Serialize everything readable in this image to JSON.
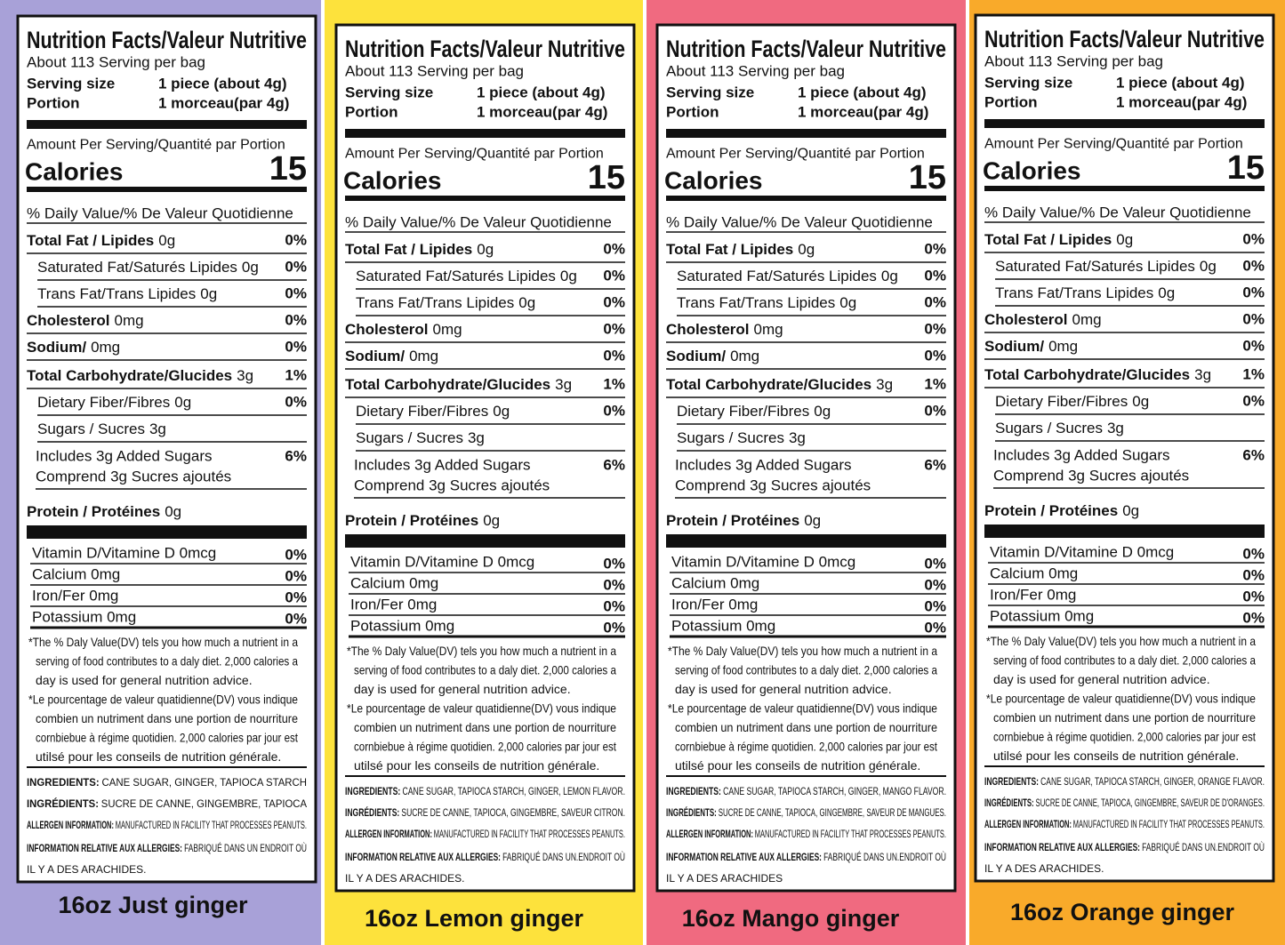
{
  "panels": [
    {
      "title": "Nutrition Facts/Valeur Nutritive",
      "servings": "About 113 Serving per bag",
      "serving_size": {
        "label": "Serving size",
        "value": "1 piece (about 4g)"
      },
      "portion": {
        "label": "Portion",
        "value": "1 morceau(par 4g)"
      },
      "amount_per_serving": "Amount Per Serving/Quantité  par Portion",
      "calories_label": "Calories",
      "calories": 15,
      "dv_header": "% Daily Value/% De Valeur Quotidienne",
      "nutrients": [
        {
          "name": "Total Fat / Lipides",
          "amount": "0g",
          "dv": "0%"
        },
        {
          "name": "Saturated Fat/Saturés Lipides",
          "amount": "0g",
          "dv": "0%"
        },
        {
          "name": "Trans Fat/Trans Lipides",
          "amount": "0g",
          "dv": "0%"
        },
        {
          "name": "Cholesterol",
          "amount": "0mg",
          "dv": "0%"
        },
        {
          "name": "Sodium/",
          "amount": "0mg",
          "dv": "0%"
        },
        {
          "name": "Total Carbohydrate/Glucides",
          "amount": "3g",
          "dv": "1%"
        },
        {
          "name": "Dietary Fiber/Fibres",
          "amount": "0g",
          "dv": "0%"
        },
        {
          "name": "Sugars / Sucres",
          "amount": "3g"
        }
      ],
      "added_sugars": {
        "lines": [
          "Includes 3g Added Sugars",
          "Comprend 3g Sucres ajoutés"
        ],
        "dv": "6%"
      },
      "protein": {
        "name": "Protein / Protéines",
        "amount": "0g"
      },
      "vitamins": [
        {
          "name": "Vitamin D/Vitamine D 0mcg",
          "dv": "0%"
        },
        {
          "name": "Calcium 0mg",
          "dv": "0%"
        },
        {
          "name": "Iron/Fer 0mg",
          "dv": "0%"
        },
        {
          "name": "Potassium 0mg",
          "dv": "0%"
        }
      ],
      "footnote": [
        "*The % Daly Value(DV) tels you how much a nutrient in a",
        "serving of food contributes to a daly diet. 2,000 calories a",
        "day is used for general nutrition advice.",
        "*Le pourcentage de valeur quatidienne(DV) vous indique",
        "combien un nutriment dans une portion de nourriture",
        "cornbiebue à régime quotidien. 2,000 calories par jour est",
        "utilsé pour les conseils de nutrition générale."
      ],
      "ingredients": [
        {
          "label": "INGREDIENTS:",
          "text": "CANE SUGAR, GINGER, TAPIOCA STARCH"
        },
        {
          "label": "INGRÉDIENTS:",
          "text": "SUCRE DE CANNE, GINGEMBRE, TAPIOCA"
        },
        {
          "label": "ALLERGEN INFORMATION:",
          "text": "MANUFACTURED IN FACILITY THAT PROCESSES PEANUTS."
        },
        {
          "label": "INFORMATION RELATIVE AUX ALLERGIES:",
          "text": "FABRIQUÉ DANS UN ENDROIT OÙ"
        },
        {
          "text": "IL Y A DES ARACHIDES."
        }
      ],
      "caption": "16oz Just ginger"
    },
    {
      "title": "Nutrition Facts/Valeur Nutritive",
      "servings": "About 113 Serving per bag",
      "serving_size": {
        "label": "Serving size",
        "value": "1 piece (about 4g)"
      },
      "portion": {
        "label": "Portion",
        "value": "1 morceau(par 4g)"
      },
      "amount_per_serving": "Amount Per Serving/Quantité  par Portion",
      "calories_label": "Calories",
      "calories": 15,
      "dv_header": "% Daily Value/% De Valeur Quotidienne",
      "nutrients": [
        {
          "name": "Total Fat / Lipides",
          "amount": "0g",
          "dv": "0%"
        },
        {
          "name": "Saturated Fat/Saturés Lipides",
          "amount": "0g",
          "dv": "0%"
        },
        {
          "name": "Trans Fat/Trans Lipides",
          "amount": "0g",
          "dv": "0%"
        },
        {
          "name": "Cholesterol",
          "amount": "0mg",
          "dv": "0%"
        },
        {
          "name": "Sodium/",
          "amount": "0mg",
          "dv": "0%"
        },
        {
          "name": "Total Carbohydrate/Glucides",
          "amount": "3g",
          "dv": "1%"
        },
        {
          "name": "Dietary Fiber/Fibres",
          "amount": "0g",
          "dv": "0%"
        },
        {
          "name": "Sugars / Sucres",
          "amount": "3g"
        }
      ],
      "added_sugars": {
        "lines": [
          "Includes 3g Added Sugars",
          "Comprend 3g Sucres ajoutés"
        ],
        "dv": "6%"
      },
      "protein": {
        "name": "Protein / Protéines",
        "amount": "0g"
      },
      "vitamins": [
        {
          "name": "Vitamin D/Vitamine D 0mcg",
          "dv": "0%"
        },
        {
          "name": "Calcium 0mg",
          "dv": "0%"
        },
        {
          "name": "Iron/Fer 0mg",
          "dv": "0%"
        },
        {
          "name": "Potassium 0mg",
          "dv": "0%"
        }
      ],
      "footnote": [
        "*The % Daly Value(DV) tels you how much a nutrient in a",
        "serving of food contributes to a daly diet. 2,000 calories a",
        "day is used for general nutrition advice.",
        "*Le pourcentage de valeur quatidienne(DV) vous indique",
        "combien un nutriment dans une portion de nourriture",
        "cornbiebue à régime quotidien. 2,000 calories par jour est",
        "utilsé pour les conseils de nutrition générale."
      ],
      "ingredients": [
        {
          "label": "INGREDIENTS:",
          "text": "CANE SUGAR, TAPIOCA STARCH, GINGER, LEMON FLAVOR."
        },
        {
          "label": "INGRÉDIENTS:",
          "text": "SUCRE DE CANNE, TAPIOCA, GINGEMBRE, SAVEUR CITRON."
        },
        {
          "label": "ALLERGEN INFORMATION:",
          "text": "MANUFACTURED IN FACILITY THAT PROCESSES PEANUTS."
        },
        {
          "label": "INFORMATION RELATIVE AUX ALLERGIES:",
          "text": "FABRIQUÉ DANS UN.ENDROIT OÙ"
        },
        {
          "text": "IL Y A DES ARACHIDES."
        }
      ],
      "caption": "16oz Lemon ginger"
    },
    {
      "title": "Nutrition Facts/Valeur Nutritive",
      "servings": "About 113 Serving per bag",
      "serving_size": {
        "label": "Serving size",
        "value": "1 piece (about 4g)"
      },
      "portion": {
        "label": "Portion",
        "value": "1 morceau(par 4g)"
      },
      "amount_per_serving": "Amount Per Serving/Quantité  par Portion",
      "calories_label": "Calories",
      "calories": 15,
      "dv_header": "% Daily Value/% De Valeur Quotidienne",
      "nutrients": [
        {
          "name": "Total Fat / Lipides",
          "amount": "0g",
          "dv": "0%"
        },
        {
          "name": "Saturated Fat/Saturés Lipides",
          "amount": "0g",
          "dv": "0%"
        },
        {
          "name": "Trans Fat/Trans Lipides",
          "amount": "0g",
          "dv": "0%"
        },
        {
          "name": "Cholesterol",
          "amount": "0mg",
          "dv": "0%"
        },
        {
          "name": "Sodium/",
          "amount": "0mg",
          "dv": "0%"
        },
        {
          "name": "Total Carbohydrate/Glucides",
          "amount": "3g",
          "dv": "1%"
        },
        {
          "name": "Dietary Fiber/Fibres",
          "amount": "0g",
          "dv": "0%"
        },
        {
          "name": "Sugars / Sucres",
          "amount": "3g"
        }
      ],
      "added_sugars": {
        "lines": [
          "Includes 3g Added Sugars",
          "Comprend 3g Sucres ajoutés"
        ],
        "dv": "6%"
      },
      "protein": {
        "name": "Protein / Protéines",
        "amount": "0g"
      },
      "vitamins": [
        {
          "name": "Vitamin D/Vitamine D 0mcg",
          "dv": "0%"
        },
        {
          "name": "Calcium 0mg",
          "dv": "0%"
        },
        {
          "name": "Iron/Fer 0mg",
          "dv": "0%"
        },
        {
          "name": "Potassium 0mg",
          "dv": "0%"
        }
      ],
      "footnote": [
        "*The % Daly Value(DV) tels you how much a nutrient in a",
        "serving of food contributes to a daly diet. 2,000 calories a",
        "day is used for general nutrition advice.",
        "*Le pourcentage de valeur quatidienne(DV) vous indique",
        "combien un nutriment dans une portion de nourriture",
        "cornbiebue à régime quotidien. 2,000 calories par jour est",
        "utilsé pour les conseils de nutrition générale."
      ],
      "ingredients": [
        {
          "label": "INGREDIENTS:",
          "text": "CANE SUGAR, TAPIOCA STARCH, GINGER, MANGO FLAVOR."
        },
        {
          "label": "INGRÉDIENTS:",
          "text": "SUCRE DE CANNE, TAPIOCA, GINGEMBRE, SAVEUR DE MANGUES."
        },
        {
          "label": "ALLERGEN INFORMATION:",
          "text": "MANUFACTURED IN FACILITY THAT PROCESSES PEANUTS."
        },
        {
          "label": "INFORMATION RELATIVE AUX ALLERGIES:",
          "text": "FABRIQUÉ DANS UN.ENDROIT OÙ"
        },
        {
          "text": "IL Y A DES ARACHIDES"
        }
      ],
      "caption": "16oz Mango ginger"
    },
    {
      "title": "Nutrition Facts/Valeur Nutritive",
      "servings": "About 113 Serving per bag",
      "serving_size": {
        "label": "Serving size",
        "value": "1 piece (about 4g)"
      },
      "portion": {
        "label": "Portion",
        "value": "1 morceau(par 4g)"
      },
      "amount_per_serving": "Amount Per Serving/Quantité  par Portion",
      "calories_label": "Calories",
      "calories": 15,
      "dv_header": "% Daily Value/% De Valeur Quotidienne",
      "nutrients": [
        {
          "name": "Total Fat / Lipides",
          "amount": "0g",
          "dv": "0%"
        },
        {
          "name": "Saturated Fat/Saturés Lipides",
          "amount": "0g",
          "dv": "0%"
        },
        {
          "name": "Trans Fat/Trans Lipides",
          "amount": "0g",
          "dv": "0%"
        },
        {
          "name": "Cholesterol",
          "amount": "0mg",
          "dv": "0%"
        },
        {
          "name": "Sodium/",
          "amount": "0mg",
          "dv": "0%"
        },
        {
          "name": "Total Carbohydrate/Glucides",
          "amount": "3g",
          "dv": "1%"
        },
        {
          "name": "Dietary Fiber/Fibres",
          "amount": "0g",
          "dv": "0%"
        },
        {
          "name": "Sugars / Sucres",
          "amount": "3g"
        }
      ],
      "added_sugars": {
        "lines": [
          "Includes 3g Added Sugars",
          "Comprend 3g Sucres ajoutés"
        ],
        "dv": "6%"
      },
      "protein": {
        "name": "Protein / Protéines",
        "amount": "0g"
      },
      "vitamins": [
        {
          "name": "Vitamin D/Vitamine D 0mcg",
          "dv": "0%"
        },
        {
          "name": "Calcium 0mg",
          "dv": "0%"
        },
        {
          "name": "Iron/Fer 0mg",
          "dv": "0%"
        },
        {
          "name": "Potassium 0mg",
          "dv": "0%"
        }
      ],
      "footnote": [
        "*The % Daly Value(DV) tels you how much a nutrient in a",
        "serving of food contributes to a daly diet. 2,000 calories a",
        "day is used for general nutrition advice.",
        "*Le pourcentage de valeur quatidienne(DV) vous indique",
        "combien un nutriment dans une portion de nourriture",
        "cornbiebue à régime quotidien. 2,000 calories par jour est",
        "utilsé pour les conseils de nutrition générale."
      ],
      "ingredients": [
        {
          "label": "INGREDIENTS:",
          "text": "CANE SUGAR, TAPIOCA STARCH, GINGER, ORANGE FLAVOR."
        },
        {
          "label": "INGRÉDIENTS:",
          "text": "SUCRE DE CANNE, TAPIOCA, GINGEMBRE, SAVEUR DE D'ORANGES."
        },
        {
          "label": "ALLERGEN INFORMATION:",
          "text": "MANUFACTURED IN FACILITY THAT PROCESSES PEANUTS."
        },
        {
          "label": "INFORMATION RELATIVE AUX ALLERGIES:",
          "text": "FABRIQUÉ DANS UN.ENDROIT OÙ"
        },
        {
          "text": "IL Y A DES ARACHIDES."
        }
      ],
      "caption": "16oz Orange ginger"
    }
  ]
}
